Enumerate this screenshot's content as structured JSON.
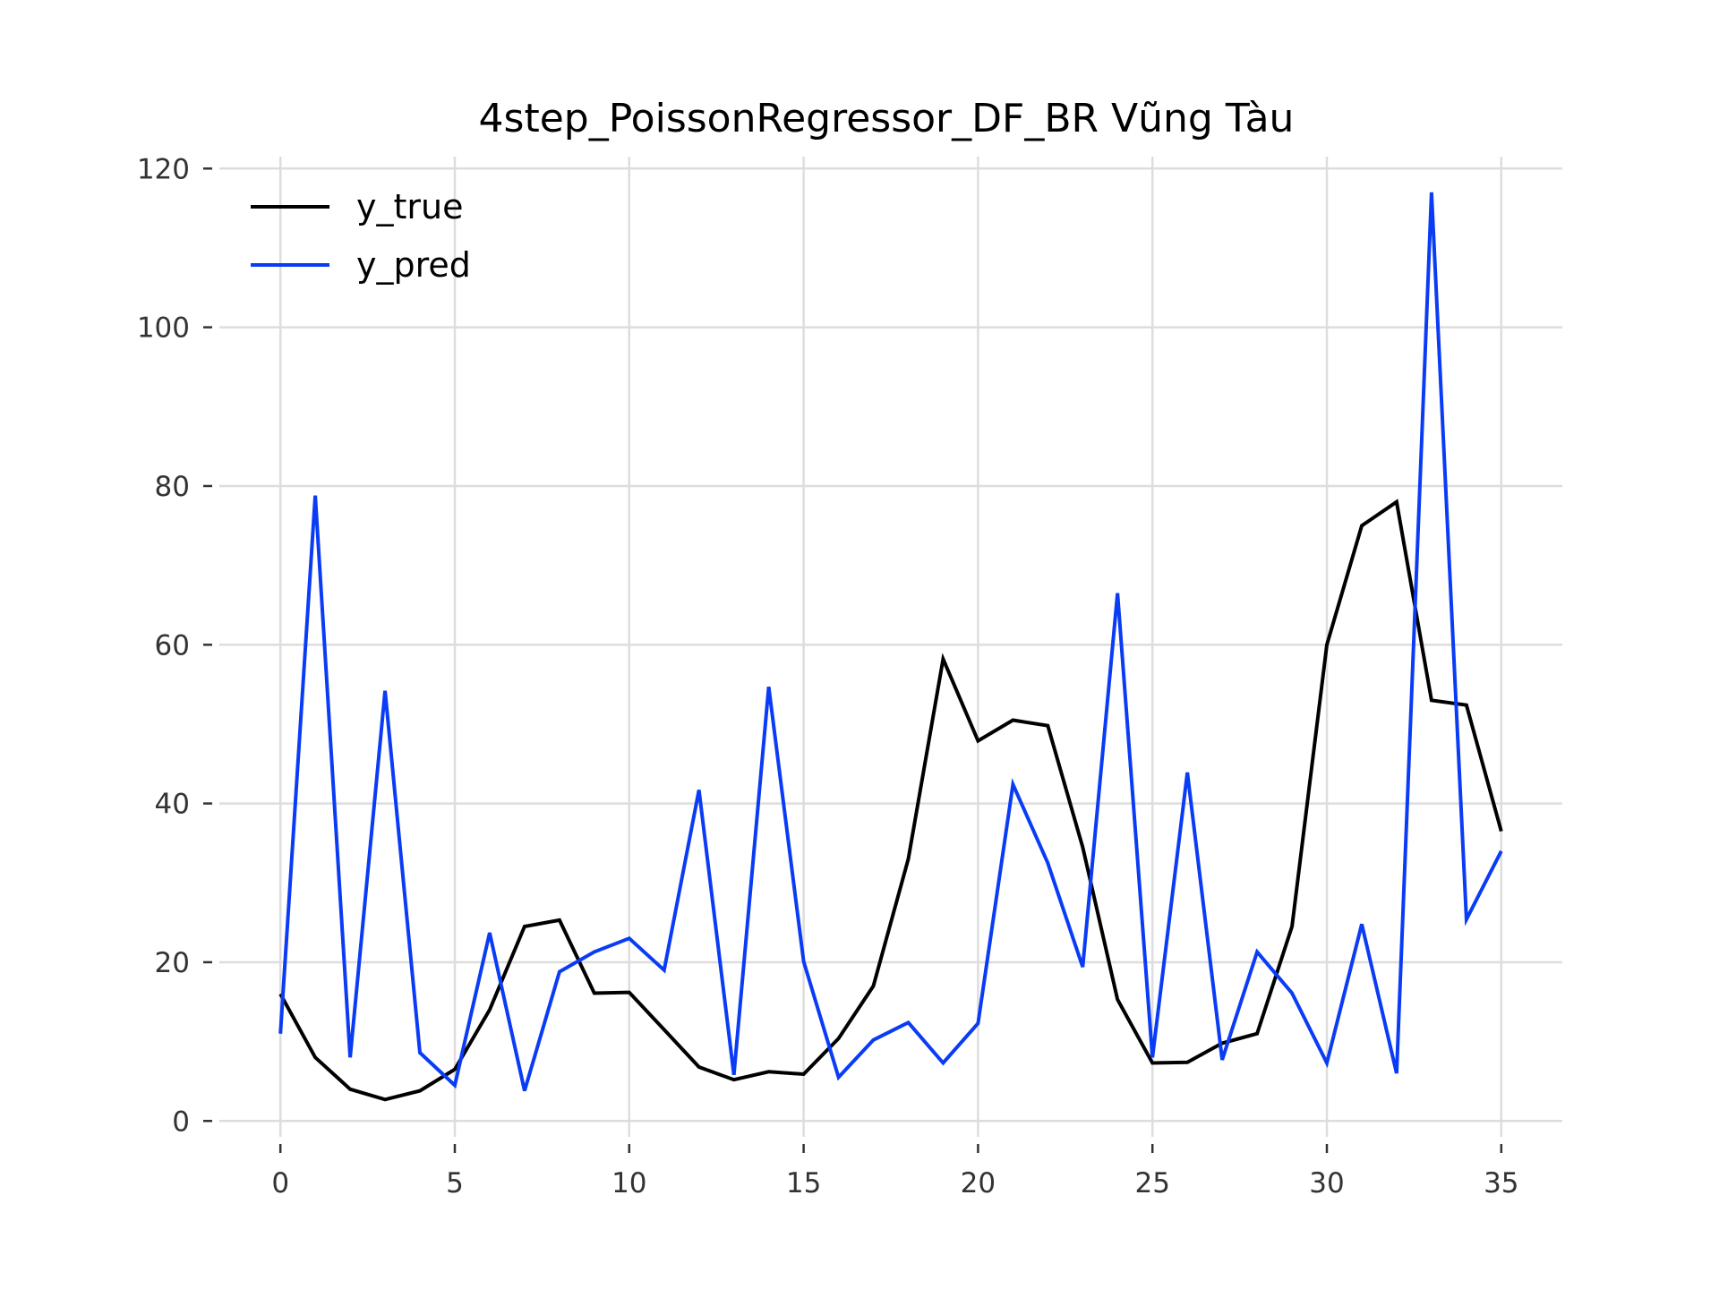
{
  "chart_data": {
    "type": "line",
    "title": "4step_PoissonRegressor_DF_BR Vũng Tàu",
    "xlabel": "",
    "ylabel": "",
    "xlim": [
      -1.75,
      36.75
    ],
    "ylim": [
      -2,
      121.5
    ],
    "xticks": [
      0,
      5,
      10,
      15,
      20,
      25,
      30,
      35
    ],
    "yticks": [
      0,
      20,
      40,
      60,
      80,
      100,
      120
    ],
    "grid": true,
    "legend_position": "top-left",
    "x": [
      0,
      1,
      2,
      3,
      4,
      5,
      6,
      7,
      8,
      9,
      10,
      11,
      12,
      13,
      14,
      15,
      16,
      17,
      18,
      19,
      20,
      21,
      22,
      23,
      24,
      25,
      26,
      27,
      28,
      29,
      30,
      31,
      32,
      33,
      34,
      35
    ],
    "series": [
      {
        "name": "y_true",
        "color": "#000000",
        "values": [
          16,
          8,
          4,
          2.7,
          3.8,
          6.5,
          14,
          24.5,
          25.3,
          16.1,
          16.2,
          11.5,
          6.8,
          5.2,
          6.2,
          5.9,
          10.4,
          17,
          33,
          58.2,
          47.9,
          50.5,
          49.8,
          34.5,
          15.3,
          7.3,
          7.4,
          9.8,
          11,
          24.5,
          60,
          75,
          78,
          53,
          52.4,
          36.5
        ]
      },
      {
        "name": "y_pred",
        "color": "#0a3cf5",
        "values": [
          11,
          78.8,
          8,
          54.2,
          8.6,
          4.5,
          23.7,
          3.8,
          18.8,
          21.3,
          23,
          19,
          41.7,
          5.8,
          54.7,
          20.1,
          5.5,
          10.2,
          12.4,
          7.3,
          12.3,
          42.4,
          32.5,
          19.4,
          66.5,
          8,
          43.9,
          7.7,
          21.3,
          16.1,
          7.3,
          24.8,
          6,
          117,
          25.4,
          34
        ]
      }
    ]
  }
}
